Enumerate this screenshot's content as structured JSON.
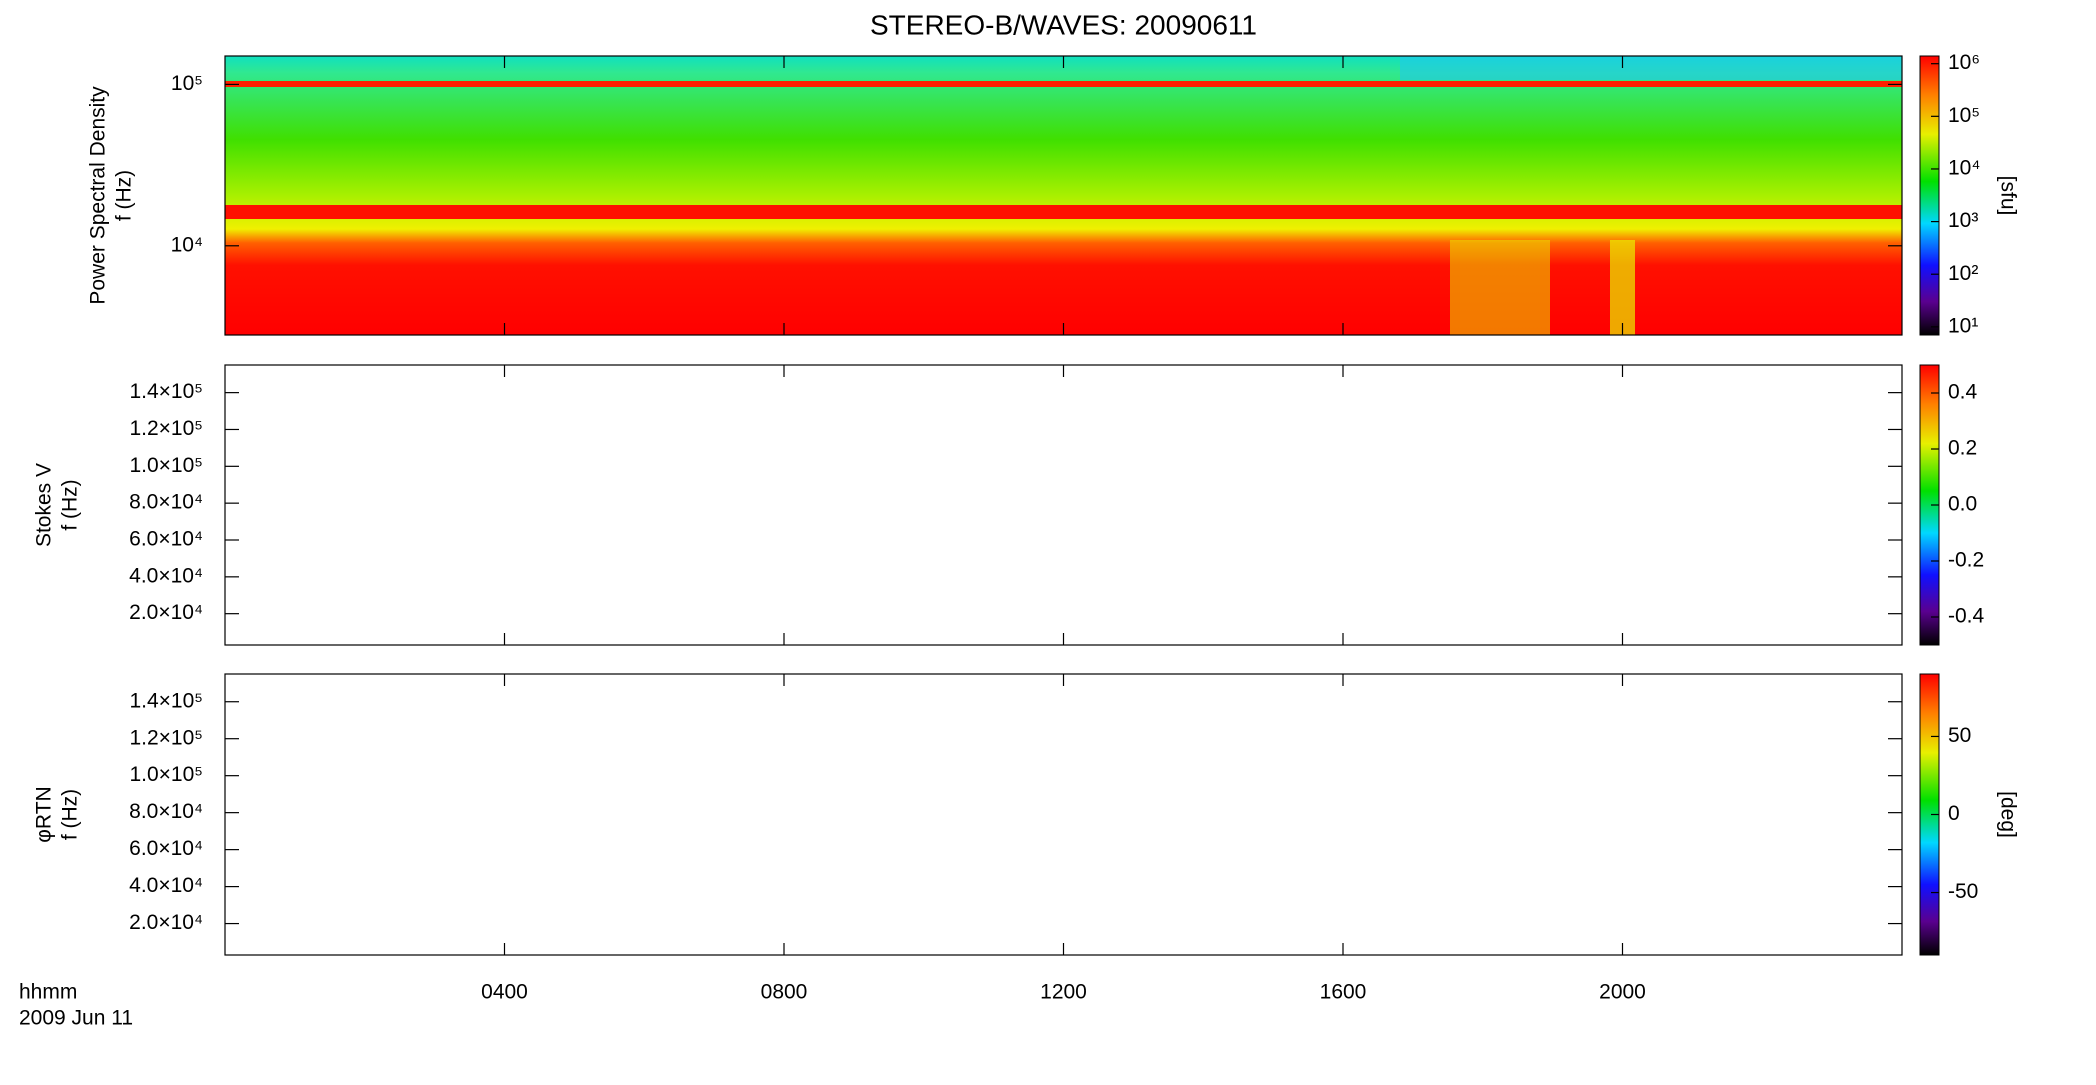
{
  "chart_data": [
    {
      "type": "spectrogram",
      "title": "STEREO-B/WAVES: 20090611",
      "ylabel": [
        "Power Spectral Density",
        "f (Hz)"
      ],
      "ylog": true,
      "ylim": [
        2800,
        150000
      ],
      "yticks": [
        {
          "value": 10000,
          "label": "10⁴"
        },
        {
          "value": 100000,
          "label": "10⁵"
        }
      ],
      "colorbar": {
        "log": true,
        "lim": [
          7,
          1400000
        ],
        "label": "[sfu]",
        "ticks": [
          {
            "value": 10,
            "label": "10¹"
          },
          {
            "value": 100,
            "label": "10²"
          },
          {
            "value": 1000,
            "label": "10³"
          },
          {
            "value": 10000,
            "label": "10⁴"
          },
          {
            "value": 100000,
            "label": "10⁵"
          },
          {
            "value": 1000000,
            "label": "10⁶"
          }
        ]
      }
    },
    {
      "type": "spectrogram",
      "ylabel": [
        "Stokes V",
        "f (Hz)"
      ],
      "ylog": false,
      "ylim": [
        3000,
        155000
      ],
      "yticks": [
        {
          "value": 20000,
          "label": "2.0×10⁴"
        },
        {
          "value": 40000,
          "label": "4.0×10⁴"
        },
        {
          "value": 60000,
          "label": "6.0×10⁴"
        },
        {
          "value": 80000,
          "label": "8.0×10⁴"
        },
        {
          "value": 100000,
          "label": "1.0×10⁵"
        },
        {
          "value": 120000,
          "label": "1.2×10⁵"
        },
        {
          "value": 140000,
          "label": "1.4×10⁵"
        }
      ],
      "colorbar": {
        "log": false,
        "lim": [
          -0.5,
          0.5
        ],
        "ticks": [
          -0.4,
          -0.2,
          {
            "value": 0,
            "label": "0.0"
          },
          0.2,
          0.4
        ]
      }
    },
    {
      "type": "spectrogram",
      "ylabel": [
        "φRTN",
        "f (Hz)"
      ],
      "ylog": false,
      "ylim": [
        3000,
        155000
      ],
      "yticks": [
        {
          "value": 20000,
          "label": "2.0×10⁴"
        },
        {
          "value": 40000,
          "label": "4.0×10⁴"
        },
        {
          "value": 60000,
          "label": "6.0×10⁴"
        },
        {
          "value": 80000,
          "label": "8.0×10⁴"
        },
        {
          "value": 100000,
          "label": "1.0×10⁵"
        },
        {
          "value": 120000,
          "label": "1.2×10⁵"
        },
        {
          "value": 140000,
          "label": "1.4×10⁵"
        }
      ],
      "colorbar": {
        "log": false,
        "lim": [
          -90,
          90
        ],
        "label": "[deg]",
        "ticks": [
          -50,
          0,
          50
        ]
      },
      "xlabel": "hhmm",
      "date": "2009 Jun 11",
      "xlim": [
        0,
        1440
      ],
      "xticks": [
        {
          "value": 240,
          "label": "0400"
        },
        {
          "value": 480,
          "label": "0800"
        },
        {
          "value": 720,
          "label": "1200"
        },
        {
          "value": 960,
          "label": "1600"
        },
        {
          "value": 1200,
          "label": "2000"
        }
      ]
    }
  ]
}
